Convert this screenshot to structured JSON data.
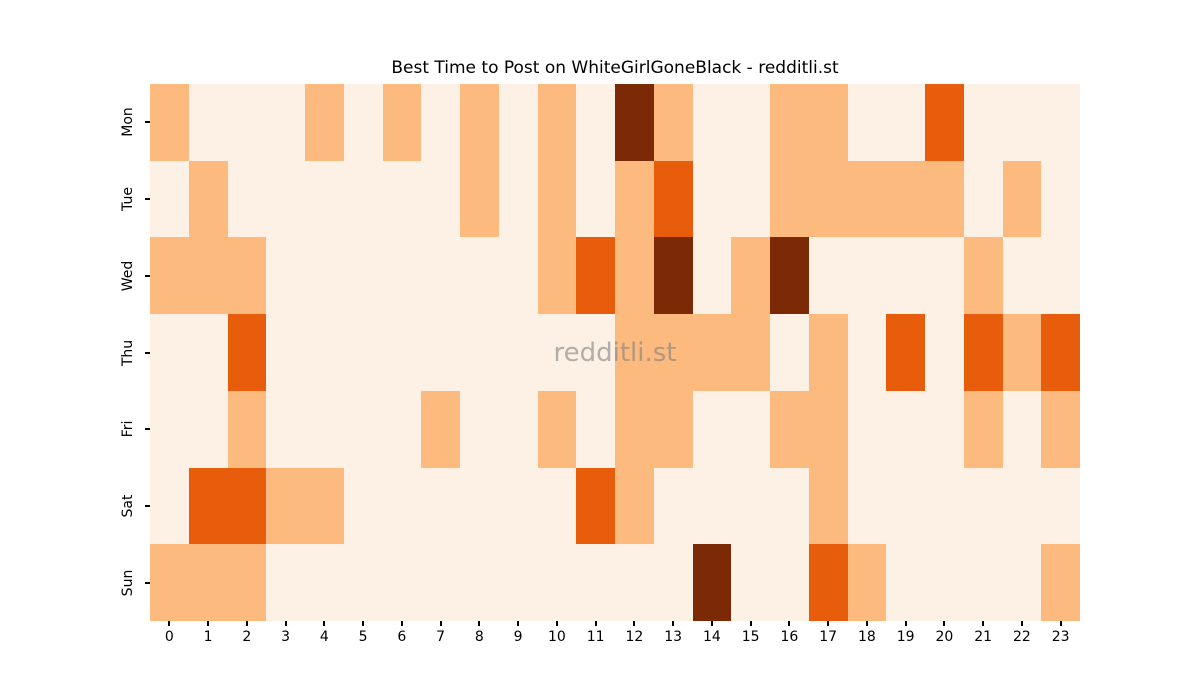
{
  "figure": {
    "background": "#ffffff",
    "title": "Best Time to Post on WhiteGirlGoneBlack - redditli.st",
    "watermark": "redditli.st"
  },
  "chart_data": {
    "type": "heatmap",
    "title": "Best Time to Post on WhiteGirlGoneBlack - redditli.st",
    "xlabel": "",
    "ylabel": "",
    "colormap": "Oranges",
    "legend": "none",
    "grid": "off",
    "watermark": "redditli.st",
    "x_tick_labels": [
      "0",
      "1",
      "2",
      "3",
      "4",
      "5",
      "6",
      "7",
      "8",
      "9",
      "10",
      "11",
      "12",
      "13",
      "14",
      "15",
      "16",
      "17",
      "18",
      "19",
      "20",
      "21",
      "22",
      "23"
    ],
    "y_tick_labels": [
      "Mon",
      "Tue",
      "Wed",
      "Thu",
      "Fri",
      "Sat",
      "Sun"
    ],
    "intensity_levels": {
      "0": "#fdf1e5",
      "1": "#fcba7e",
      "2": "#e85d0c",
      "3": "#7c2905"
    },
    "values": [
      [
        1,
        0,
        0,
        0,
        1,
        0,
        1,
        0,
        1,
        0,
        1,
        0,
        3,
        1,
        0,
        0,
        1,
        1,
        0,
        0,
        2,
        0,
        0,
        0
      ],
      [
        0,
        1,
        0,
        0,
        0,
        0,
        0,
        0,
        1,
        0,
        1,
        0,
        1,
        2,
        0,
        0,
        1,
        1,
        1,
        1,
        1,
        0,
        1,
        0
      ],
      [
        1,
        1,
        1,
        0,
        0,
        0,
        0,
        0,
        0,
        0,
        1,
        2,
        1,
        3,
        0,
        1,
        3,
        0,
        0,
        0,
        0,
        1,
        0,
        0
      ],
      [
        0,
        0,
        2,
        0,
        0,
        0,
        0,
        0,
        0,
        0,
        0,
        0,
        1,
        1,
        1,
        1,
        0,
        1,
        0,
        2,
        0,
        2,
        1,
        2
      ],
      [
        0,
        0,
        1,
        0,
        0,
        0,
        0,
        1,
        0,
        0,
        1,
        0,
        1,
        1,
        0,
        0,
        1,
        1,
        0,
        0,
        0,
        1,
        0,
        1
      ],
      [
        0,
        2,
        2,
        1,
        1,
        0,
        0,
        0,
        0,
        0,
        0,
        2,
        1,
        0,
        0,
        0,
        0,
        1,
        0,
        0,
        0,
        0,
        0,
        0
      ],
      [
        1,
        1,
        1,
        0,
        0,
        0,
        0,
        0,
        0,
        0,
        0,
        0,
        0,
        0,
        3,
        0,
        0,
        2,
        1,
        0,
        0,
        0,
        0,
        1
      ]
    ]
  }
}
